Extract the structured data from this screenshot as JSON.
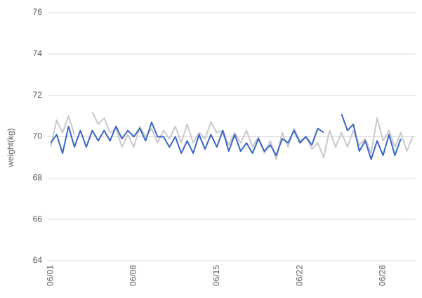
{
  "chart_data": {
    "type": "line",
    "y_label": "weight(kg)",
    "categories": [
      "06/01",
      null,
      null,
      null,
      null,
      null,
      null,
      null,
      null,
      null,
      null,
      null,
      null,
      null,
      "06/08",
      null,
      null,
      null,
      null,
      null,
      null,
      null,
      null,
      null,
      null,
      null,
      null,
      null,
      "06/15",
      null,
      null,
      null,
      null,
      null,
      null,
      null,
      null,
      null,
      null,
      null,
      null,
      null,
      "06/22",
      null,
      null,
      null,
      null,
      null,
      null,
      null,
      null,
      null,
      null,
      null,
      null,
      null,
      "06/28",
      null,
      null,
      null,
      null,
      null
    ],
    "series": [
      {
        "color": "#c9c9c9",
        "values": [
          69.5,
          70.8,
          70.2,
          71.0,
          70.1,
          null,
          null,
          71.2,
          70.6,
          70.9,
          70.2,
          70.4,
          69.5,
          70.1,
          69.5,
          70.5,
          70.0,
          70.4,
          69.7,
          70.3,
          69.9,
          70.5,
          69.7,
          70.6,
          69.7,
          70.2,
          69.9,
          70.7,
          70.2,
          70.3,
          69.6,
          70.2,
          69.7,
          70.3,
          69.5,
          70.0,
          69.2,
          69.8,
          68.9,
          70.2,
          69.5,
          70.4,
          69.8,
          70.0,
          69.4,
          69.7,
          69.0,
          70.3,
          69.5,
          70.2,
          69.5,
          70.3,
          69.6,
          69.9,
          69.2,
          70.9,
          69.8,
          70.3,
          69.5,
          70.2,
          69.3,
          70.0
        ]
      },
      {
        "color": "#3a66c4",
        "values": [
          69.7,
          70.1,
          69.2,
          70.5,
          69.5,
          70.3,
          69.5,
          70.3,
          69.8,
          70.3,
          69.8,
          70.5,
          69.9,
          70.3,
          70.0,
          70.4,
          69.8,
          70.7,
          70.0,
          70.0,
          69.5,
          70.0,
          69.2,
          69.8,
          69.2,
          70.1,
          69.4,
          70.1,
          69.5,
          70.3,
          69.3,
          70.1,
          69.3,
          69.7,
          69.2,
          69.9,
          69.3,
          69.6,
          69.1,
          69.9,
          69.7,
          70.3,
          69.7,
          70.0,
          69.6,
          70.4,
          70.2,
          null,
          null,
          71.1,
          70.3,
          70.6,
          69.3,
          69.8,
          68.9,
          69.8,
          69.1,
          70.1,
          69.1,
          69.9,
          null,
          null
        ]
      }
    ],
    "ylim": [
      64,
      76
    ],
    "yticks": [
      64,
      66,
      68,
      70,
      72,
      74,
      76
    ],
    "grid": true
  }
}
